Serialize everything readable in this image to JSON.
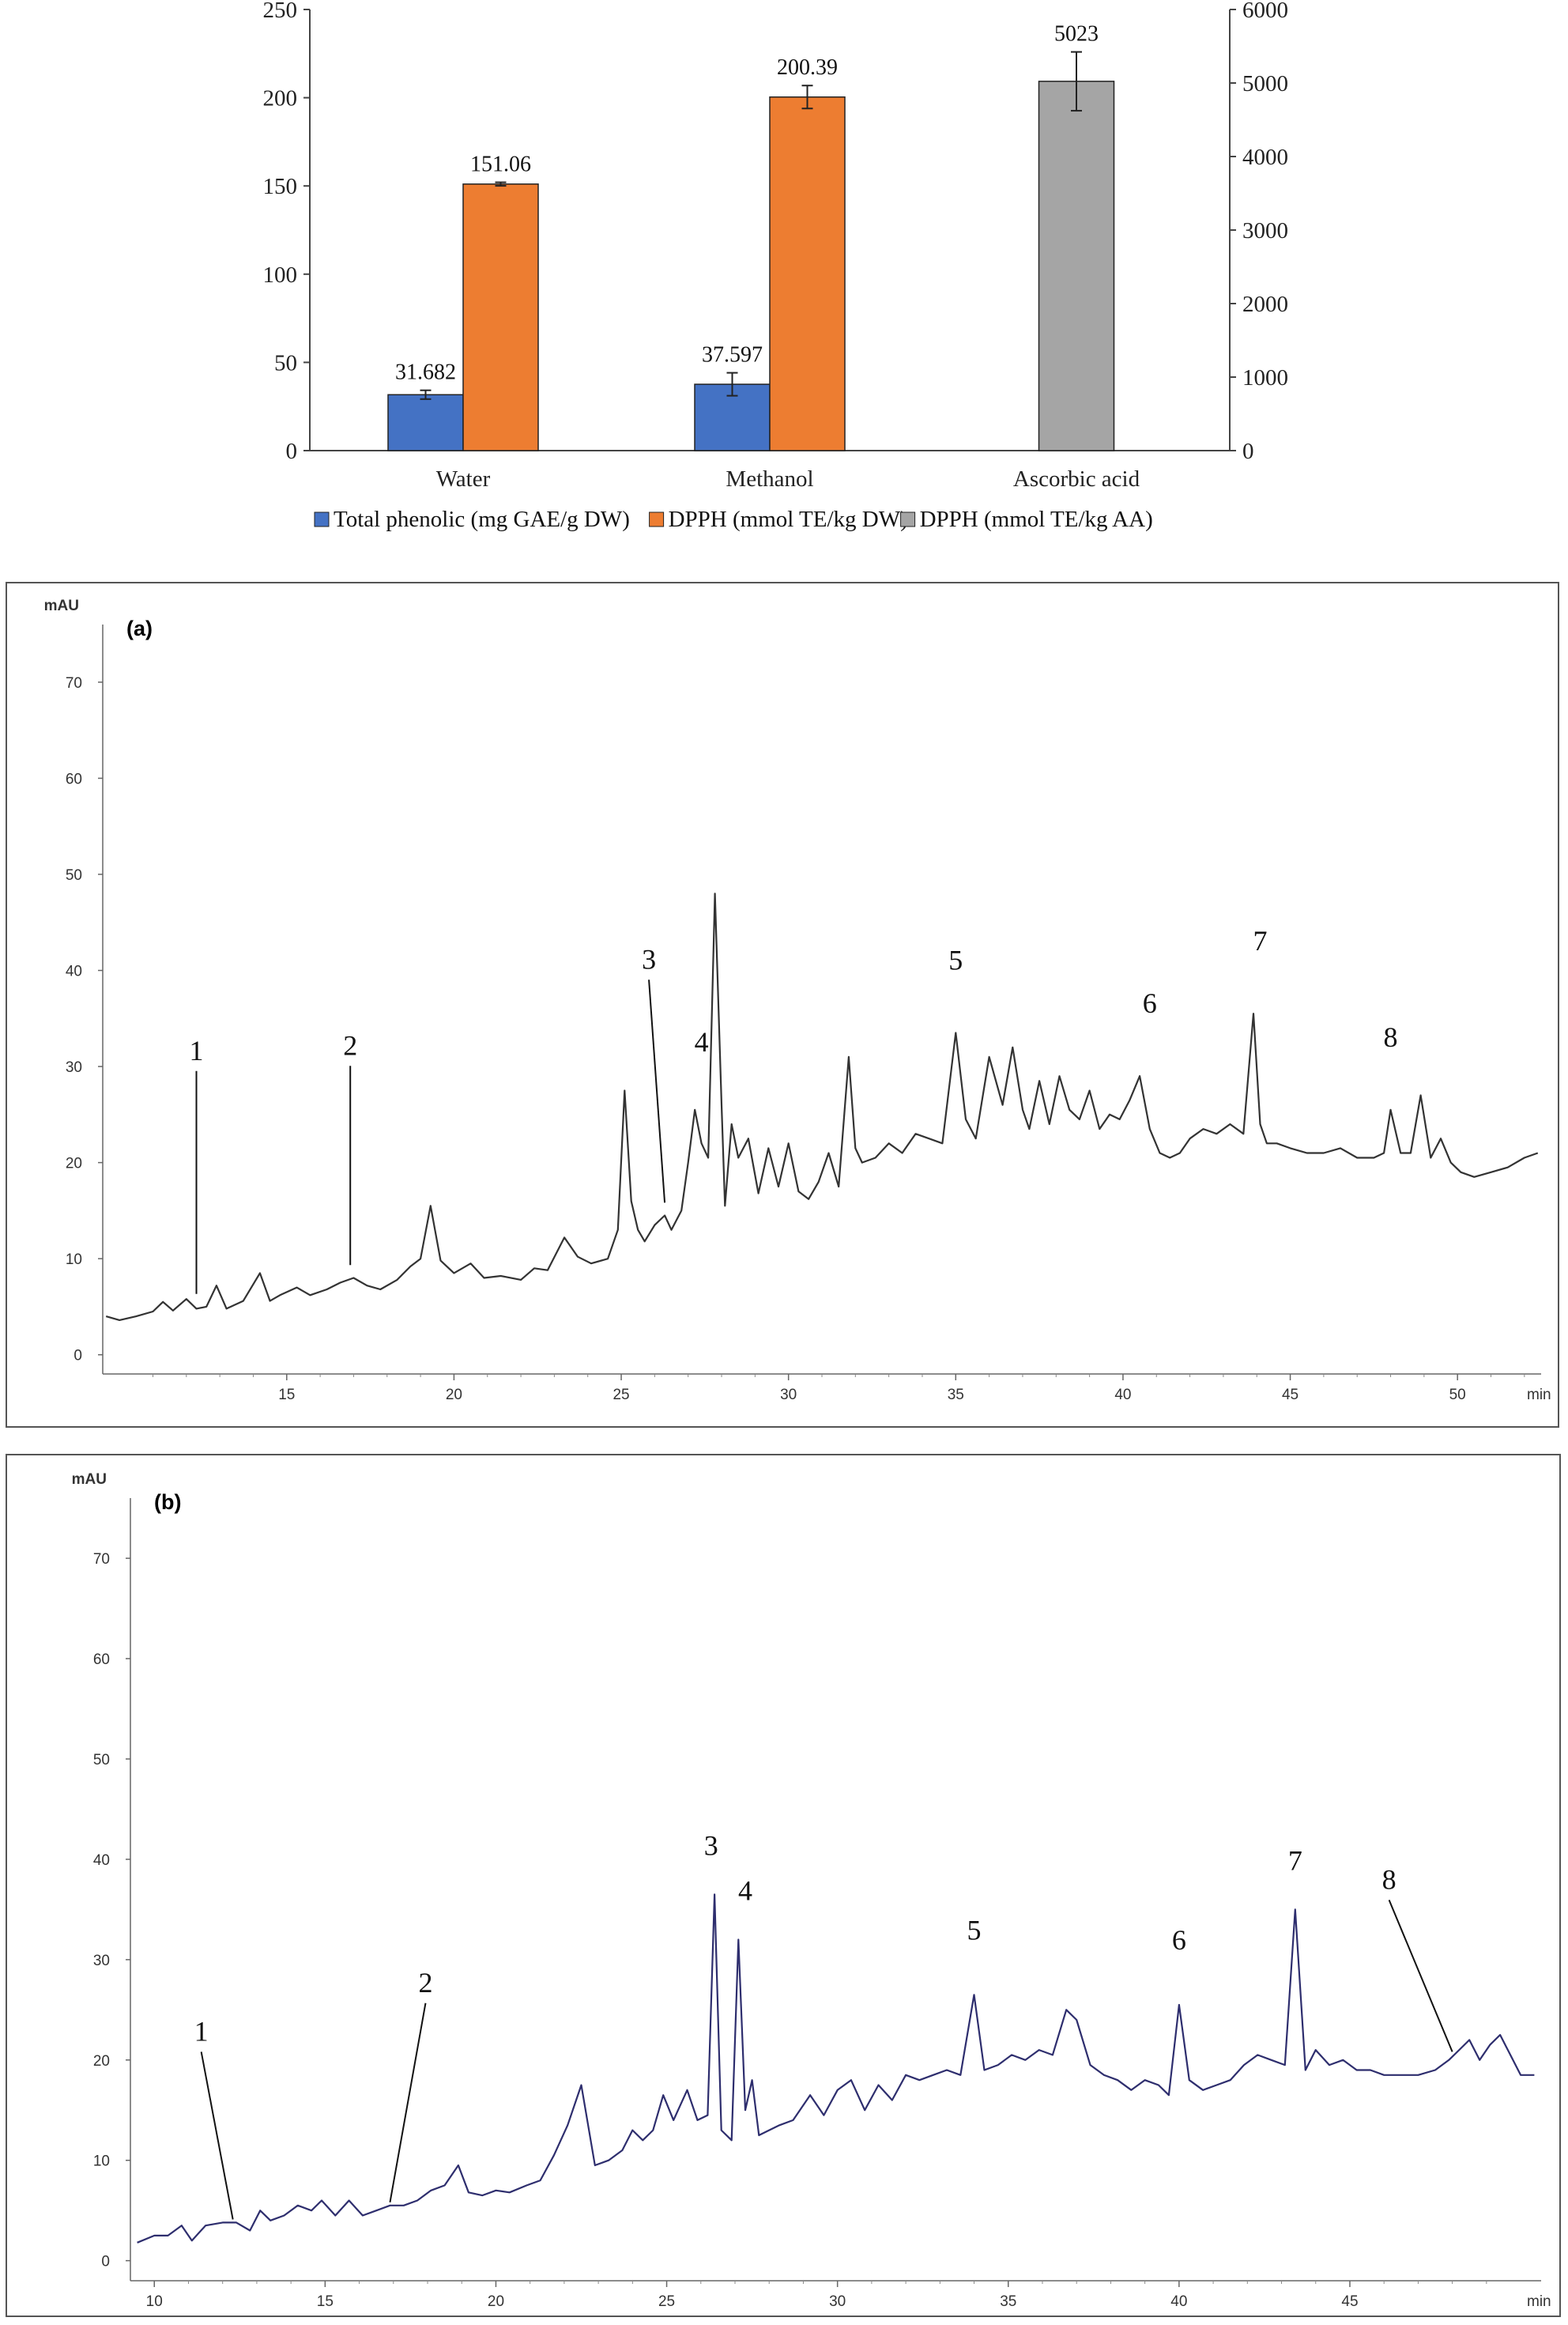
{
  "chart_data": [
    {
      "type": "bar",
      "categories": [
        "Water",
        "Methanol",
        "Ascorbic acid"
      ],
      "series": [
        {
          "name": "Total phenolic (mg GAE/g DW)",
          "color": "#4472C4",
          "axis": "left",
          "values": [
            31.682,
            37.597,
            null
          ],
          "errors": [
            2.5,
            6.5,
            null
          ],
          "labels": [
            "31.682",
            "37.597",
            ""
          ]
        },
        {
          "name": "DPPH (mmol TE/kg DW)",
          "color": "#ED7D31",
          "axis": "left",
          "values": [
            151.06,
            200.39,
            null
          ],
          "errors": [
            1.0,
            6.5,
            null
          ],
          "labels": [
            "151.06",
            "200.39",
            ""
          ]
        },
        {
          "name": "DPPH (mmol TE/kg AA)",
          "color": "#A5A5A5",
          "axis": "right",
          "values": [
            null,
            null,
            5023
          ],
          "errors": [
            null,
            null,
            400
          ],
          "labels": [
            "",
            "",
            "5023"
          ]
        }
      ],
      "ylim": [
        0,
        250
      ],
      "y2lim": [
        0,
        6000
      ],
      "yticks": [
        "0",
        "50",
        "100",
        "150",
        "200",
        "250"
      ],
      "y2ticks": [
        "0",
        "1000",
        "2000",
        "3000",
        "4000",
        "5000",
        "6000"
      ],
      "legend_position": "bottom"
    },
    {
      "type": "line",
      "panel_label": "(a)",
      "ylabel": "mAU",
      "xlabel": "min",
      "xlim": [
        9.5,
        52.5
      ],
      "ylim": [
        -2,
        76
      ],
      "xticks": [
        "15",
        "20",
        "25",
        "30",
        "35",
        "40",
        "45",
        "50"
      ],
      "yticks": [
        "0",
        "10",
        "20",
        "30",
        "40",
        "50",
        "60",
        "70"
      ],
      "color": "#333333",
      "x": [
        9.6,
        10.0,
        10.5,
        11.0,
        11.3,
        11.6,
        12.0,
        12.3,
        12.6,
        12.9,
        13.2,
        13.7,
        14.2,
        14.5,
        14.8,
        15.3,
        15.7,
        16.2,
        16.6,
        17.0,
        17.4,
        17.8,
        18.3,
        18.7,
        19.0,
        19.3,
        19.6,
        20.0,
        20.5,
        20.9,
        21.4,
        22.0,
        22.4,
        22.8,
        23.3,
        23.7,
        24.1,
        24.6,
        24.9,
        25.1,
        25.3,
        25.5,
        25.7,
        26.0,
        26.3,
        26.5,
        26.8,
        27.0,
        27.2,
        27.4,
        27.6,
        27.8,
        28.0,
        28.1,
        28.3,
        28.5,
        28.8,
        29.1,
        29.4,
        29.7,
        30.0,
        30.3,
        30.6,
        30.9,
        31.2,
        31.5,
        31.8,
        32.0,
        32.2,
        32.6,
        33.0,
        33.4,
        33.8,
        34.2,
        34.6,
        35.0,
        35.3,
        35.6,
        36.0,
        36.4,
        36.7,
        37.0,
        37.2,
        37.5,
        37.8,
        38.1,
        38.4,
        38.7,
        39.0,
        39.3,
        39.6,
        39.9,
        40.2,
        40.5,
        40.8,
        41.1,
        41.4,
        41.7,
        42.0,
        42.4,
        42.8,
        43.2,
        43.6,
        43.9,
        44.1,
        44.3,
        44.6,
        45.0,
        45.5,
        46.0,
        46.5,
        47.0,
        47.5,
        47.8,
        48.0,
        48.3,
        48.6,
        48.9,
        49.2,
        49.5,
        49.8,
        50.1,
        50.5,
        51.0,
        51.5,
        52.0,
        52.4
      ],
      "y": [
        4.0,
        3.6,
        4.0,
        4.5,
        5.5,
        4.6,
        5.8,
        4.8,
        5.0,
        7.2,
        4.8,
        5.6,
        8.5,
        5.6,
        6.2,
        7.0,
        6.2,
        6.8,
        7.5,
        8.0,
        7.2,
        6.8,
        7.8,
        9.2,
        10.0,
        15.5,
        9.8,
        8.5,
        9.5,
        8.0,
        8.2,
        7.8,
        9.0,
        8.8,
        12.2,
        10.2,
        9.5,
        10.0,
        13.0,
        27.5,
        16.0,
        13.0,
        11.8,
        13.5,
        14.5,
        13.0,
        15.0,
        20.0,
        25.5,
        22.0,
        20.5,
        48.0,
        26.0,
        15.5,
        24.0,
        20.5,
        22.5,
        16.8,
        21.5,
        17.5,
        22.0,
        17.0,
        16.2,
        18.0,
        21.0,
        17.5,
        31.0,
        21.5,
        20.0,
        20.5,
        22.0,
        21.0,
        23.0,
        22.5,
        22.0,
        33.5,
        24.5,
        22.5,
        31.0,
        26.0,
        32.0,
        25.5,
        23.5,
        28.5,
        24.0,
        29.0,
        25.5,
        24.5,
        27.5,
        23.5,
        25.0,
        24.5,
        26.5,
        29.0,
        23.5,
        21.0,
        20.5,
        21.0,
        22.5,
        23.5,
        23.0,
        24.0,
        23.0,
        35.5,
        24.0,
        22.0,
        22.0,
        21.5,
        21.0,
        21.0,
        21.5,
        20.5,
        20.5,
        21.0,
        25.5,
        21.0,
        21.0,
        27.0,
        20.5,
        22.5,
        20.0,
        19.0,
        18.5,
        19.0,
        19.5,
        20.5,
        21.0
      ],
      "peak_labels": [
        {
          "text": "1",
          "x": 12.3,
          "y": 6.0
        },
        {
          "text": "2",
          "x": 16.9,
          "y": 9.0
        },
        {
          "text": "3",
          "x": 26.3,
          "y": 15.5
        },
        {
          "text": "4",
          "x": 27.4,
          "y": 25.0
        },
        {
          "text": "5",
          "x": 35.0,
          "y": 33.5
        },
        {
          "text": "6",
          "x": 40.8,
          "y": 29.0
        },
        {
          "text": "7",
          "x": 44.1,
          "y": 35.5
        },
        {
          "text": "8",
          "x": 48.0,
          "y": 25.5
        }
      ]
    },
    {
      "type": "line",
      "panel_label": "(b)",
      "ylabel": "mAU",
      "xlabel": "min",
      "xlim": [
        9.3,
        50.6
      ],
      "ylim": [
        -2,
        76
      ],
      "xticks": [
        "10",
        "15",
        "20",
        "25",
        "30",
        "35",
        "40",
        "45"
      ],
      "yticks": [
        "0",
        "10",
        "20",
        "30",
        "40",
        "50",
        "60",
        "70"
      ],
      "color": "#2E2E6E",
      "x": [
        9.5,
        10.0,
        10.4,
        10.8,
        11.1,
        11.5,
        12.0,
        12.4,
        12.8,
        13.1,
        13.4,
        13.8,
        14.2,
        14.6,
        14.9,
        15.3,
        15.7,
        16.1,
        16.5,
        16.9,
        17.3,
        17.7,
        18.1,
        18.5,
        18.9,
        19.2,
        19.6,
        20.0,
        20.4,
        20.9,
        21.3,
        21.7,
        22.1,
        22.5,
        22.9,
        23.3,
        23.7,
        24.0,
        24.3,
        24.6,
        24.9,
        25.2,
        25.6,
        25.9,
        26.2,
        26.4,
        26.6,
        26.9,
        27.1,
        27.3,
        27.5,
        27.7,
        28.0,
        28.3,
        28.7,
        29.2,
        29.6,
        30.0,
        30.4,
        30.8,
        31.2,
        31.6,
        32.0,
        32.4,
        32.8,
        33.2,
        33.6,
        34.0,
        34.3,
        34.7,
        35.1,
        35.5,
        35.9,
        36.3,
        36.7,
        37.0,
        37.4,
        37.8,
        38.2,
        38.6,
        39.0,
        39.4,
        39.7,
        40.0,
        40.3,
        40.7,
        41.1,
        41.5,
        41.9,
        42.3,
        42.7,
        43.1,
        43.4,
        43.7,
        44.0,
        44.4,
        44.8,
        45.2,
        45.6,
        46.0,
        46.5,
        47.0,
        47.5,
        47.9,
        48.2,
        48.5,
        48.8,
        49.1,
        49.4,
        49.7,
        50.0,
        50.4
      ],
      "y": [
        1.8,
        2.5,
        2.5,
        3.5,
        2.0,
        3.5,
        3.8,
        3.8,
        3.0,
        5.0,
        4.0,
        4.5,
        5.5,
        5.0,
        6.0,
        4.5,
        6.0,
        4.5,
        5.0,
        5.5,
        5.5,
        6.0,
        7.0,
        7.5,
        9.5,
        6.8,
        6.5,
        7.0,
        6.8,
        7.5,
        8.0,
        10.5,
        13.5,
        17.5,
        9.5,
        10.0,
        11.0,
        13.0,
        12.0,
        13.0,
        16.5,
        14.0,
        17.0,
        14.0,
        14.5,
        36.5,
        13.0,
        12.0,
        32.0,
        15.0,
        18.0,
        12.5,
        13.0,
        13.5,
        14.0,
        16.5,
        14.5,
        17.0,
        18.0,
        15.0,
        17.5,
        16.0,
        18.5,
        18.0,
        18.5,
        19.0,
        18.5,
        26.5,
        19.0,
        19.5,
        20.5,
        20.0,
        21.0,
        20.5,
        25.0,
        24.0,
        19.5,
        18.5,
        18.0,
        17.0,
        18.0,
        17.5,
        16.5,
        25.5,
        18.0,
        17.0,
        17.5,
        18.0,
        19.5,
        20.5,
        20.0,
        19.5,
        35.0,
        19.0,
        21.0,
        19.5,
        20.0,
        19.0,
        19.0,
        18.5,
        18.5,
        18.5,
        19.0,
        20.0,
        21.0,
        22.0,
        20.0,
        21.5,
        22.5,
        20.5,
        18.5,
        18.5
      ],
      "peak_labels": [
        {
          "text": "1",
          "x": 12.3,
          "y": 3.8
        },
        {
          "text": "2",
          "x": 16.9,
          "y": 5.5
        },
        {
          "text": "3",
          "x": 26.3,
          "y": 36.5
        },
        {
          "text": "4",
          "x": 27.3,
          "y": 32.0
        },
        {
          "text": "5",
          "x": 34.0,
          "y": 26.5
        },
        {
          "text": "6",
          "x": 40.0,
          "y": 25.5
        },
        {
          "text": "7",
          "x": 43.4,
          "y": 35.0
        },
        {
          "text": "8",
          "x": 48.0,
          "y": 20.5
        }
      ]
    }
  ]
}
